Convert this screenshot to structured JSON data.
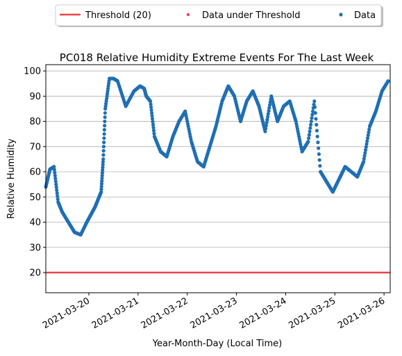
{
  "chart_data": {
    "type": "scatter",
    "title": "PC018 Relative Humidity Extreme Events For The Last Week",
    "xlabel": "Year-Month-Day (Local Time)",
    "ylabel": "Relative Humidity",
    "ylim": [
      12,
      102.5
    ],
    "xlim": [
      "2021-03-19 03:00",
      "2021-03-26 03:00"
    ],
    "yticks": [
      20,
      30,
      40,
      50,
      60,
      70,
      80,
      90,
      100
    ],
    "xticks": [
      "2021-03-20",
      "2021-03-21",
      "2021-03-22",
      "2021-03-23",
      "2021-03-24",
      "2021-03-25",
      "2021-03-26"
    ],
    "grid": "horizontal",
    "legend_placement": "top-center, above plot",
    "legend": [
      "Threshold (20)",
      "Data under Threshold",
      "Data"
    ],
    "threshold": {
      "name": "Threshold (20)",
      "value": 20,
      "color": "#e8464b"
    },
    "series": [
      {
        "name": "Data",
        "color": "#1f6fb4",
        "x": [
          "2021-03-19 03:00",
          "2021-03-19 05:00",
          "2021-03-19 07:00",
          "2021-03-19 09:00",
          "2021-03-19 11:00",
          "2021-03-19 14:00",
          "2021-03-19 17:00",
          "2021-03-19 20:00",
          "2021-03-19 23:00",
          "2021-03-20 01:00",
          "2021-03-20 03:00",
          "2021-03-20 05:00",
          "2021-03-20 06:00",
          "2021-03-20 07:00",
          "2021-03-20 08:00",
          "2021-03-20 10:00",
          "2021-03-20 12:00",
          "2021-03-20 14:00",
          "2021-03-20 18:00",
          "2021-03-20 22:00",
          "2021-03-21 01:00",
          "2021-03-21 03:00",
          "2021-03-21 04:00",
          "2021-03-21 06:00",
          "2021-03-21 08:00",
          "2021-03-21 11:00",
          "2021-03-21 14:00",
          "2021-03-21 17:00",
          "2021-03-21 20:00",
          "2021-03-21 23:00",
          "2021-03-22 02:00",
          "2021-03-22 05:00",
          "2021-03-22 08:00",
          "2021-03-22 11:00",
          "2021-03-22 14:00",
          "2021-03-22 17:00",
          "2021-03-22 20:00",
          "2021-03-22 23:00",
          "2021-03-23 02:00",
          "2021-03-23 05:00",
          "2021-03-23 08:00",
          "2021-03-23 11:00",
          "2021-03-23 14:00",
          "2021-03-23 17:00",
          "2021-03-23 20:00",
          "2021-03-23 23:00",
          "2021-03-24 02:00",
          "2021-03-24 05:00",
          "2021-03-24 08:00",
          "2021-03-24 11:00",
          "2021-03-24 14:00",
          "2021-03-24 17:00",
          "2021-03-24 20:00",
          "2021-03-24 23:00",
          "2021-03-25 02:00",
          "2021-03-25 05:00",
          "2021-03-25 08:00",
          "2021-03-25 11:00",
          "2021-03-25 14:00",
          "2021-03-25 17:00",
          "2021-03-25 20:00",
          "2021-03-25 23:00",
          "2021-03-26 02:00"
        ],
        "y": [
          54,
          61,
          62,
          48,
          44,
          40,
          36,
          35,
          40,
          43,
          46,
          50,
          52,
          65,
          85,
          97,
          97,
          96,
          86,
          92,
          94,
          93,
          90,
          88,
          74,
          68,
          66,
          74,
          80,
          84,
          72,
          64,
          62,
          70,
          78,
          88,
          94,
          90,
          80,
          88,
          92,
          86,
          76,
          90,
          80,
          86,
          88,
          80,
          68,
          72,
          88,
          60,
          56,
          52,
          57,
          62,
          60,
          58,
          64,
          78,
          84,
          92,
          96
        ]
      },
      {
        "name": "Data under Threshold",
        "color": "#e8464b",
        "x": [],
        "y": []
      }
    ]
  }
}
